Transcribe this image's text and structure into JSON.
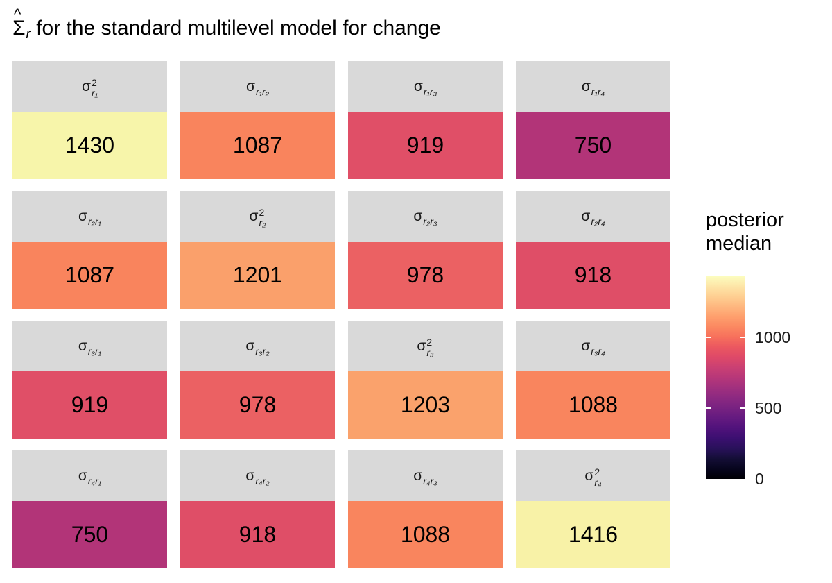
{
  "title": {
    "sigma": "Σ",
    "hat": "^",
    "sub": "r",
    "rest": " for the standard multilevel model for change"
  },
  "legend": {
    "title_line1": "posterior",
    "title_line2": "median",
    "ticks": [
      {
        "label": "1000",
        "value": 1000
      },
      {
        "label": "500",
        "value": 500
      },
      {
        "label": "0",
        "value": 0
      }
    ],
    "max": 1430,
    "palette": "magma",
    "top_color": "#fcfdbf",
    "bottom_color": "#000004"
  },
  "cells": [
    {
      "sigma": "σ",
      "sup": "2",
      "sub": "r₁",
      "value": "1430",
      "color": "#F7F5AA"
    },
    {
      "sigma": "σ",
      "sup": "",
      "sub": "r₁r₂",
      "value": "1087",
      "color": "#F9845D"
    },
    {
      "sigma": "σ",
      "sup": "",
      "sub": "r₁r₃",
      "value": "919",
      "color": "#E04F67"
    },
    {
      "sigma": "σ",
      "sup": "",
      "sub": "r₁r₄",
      "value": "750",
      "color": "#B23478"
    },
    {
      "sigma": "σ",
      "sup": "",
      "sub": "r₂r₁",
      "value": "1087",
      "color": "#F9845D"
    },
    {
      "sigma": "σ",
      "sup": "2",
      "sub": "r₂",
      "value": "1201",
      "color": "#FAA06B"
    },
    {
      "sigma": "σ",
      "sup": "",
      "sub": "r₂r₃",
      "value": "978",
      "color": "#EB6163"
    },
    {
      "sigma": "σ",
      "sup": "",
      "sub": "r₂r₄",
      "value": "918",
      "color": "#DF4E67"
    },
    {
      "sigma": "σ",
      "sup": "",
      "sub": "r₃r₁",
      "value": "919",
      "color": "#E04F67"
    },
    {
      "sigma": "σ",
      "sup": "",
      "sub": "r₃r₂",
      "value": "978",
      "color": "#EB6163"
    },
    {
      "sigma": "σ",
      "sup": "2",
      "sub": "r₃",
      "value": "1203",
      "color": "#FAA26C"
    },
    {
      "sigma": "σ",
      "sup": "",
      "sub": "r₃r₄",
      "value": "1088",
      "color": "#F9855E"
    },
    {
      "sigma": "σ",
      "sup": "",
      "sub": "r₄r₁",
      "value": "750",
      "color": "#B23478"
    },
    {
      "sigma": "σ",
      "sup": "",
      "sub": "r₄r₂",
      "value": "918",
      "color": "#DF4E67"
    },
    {
      "sigma": "σ",
      "sup": "",
      "sub": "r₄r₃",
      "value": "1088",
      "color": "#F9855E"
    },
    {
      "sigma": "σ",
      "sup": "2",
      "sub": "r₄",
      "value": "1416",
      "color": "#F8F2A7"
    }
  ],
  "chart_data": {
    "type": "heatmap",
    "title": "Σ̂r for the standard multilevel model for change",
    "rows": [
      "r1",
      "r2",
      "r3",
      "r4"
    ],
    "cols": [
      "r1",
      "r2",
      "r3",
      "r4"
    ],
    "values": [
      [
        1430,
        1087,
        919,
        750
      ],
      [
        1087,
        1201,
        978,
        918
      ],
      [
        919,
        978,
        1203,
        1088
      ],
      [
        750,
        918,
        1088,
        1416
      ]
    ],
    "cell_labels": [
      "σ²_r1",
      "σ_r1r2",
      "σ_r1r3",
      "σ_r1r4",
      "σ_r2r1",
      "σ²_r2",
      "σ_r2r3",
      "σ_r2r4",
      "σ_r3r1",
      "σ_r3r2",
      "σ²_r3",
      "σ_r3r4",
      "σ_r4r1",
      "σ_r4r2",
      "σ_r4r3",
      "σ²_r4"
    ],
    "legend": {
      "title": "posterior median",
      "colormap": "magma",
      "domain": [
        0,
        1430
      ],
      "ticks": [
        0,
        500,
        1000
      ],
      "orientation": "vertical",
      "position": "right"
    },
    "grid": false
  }
}
